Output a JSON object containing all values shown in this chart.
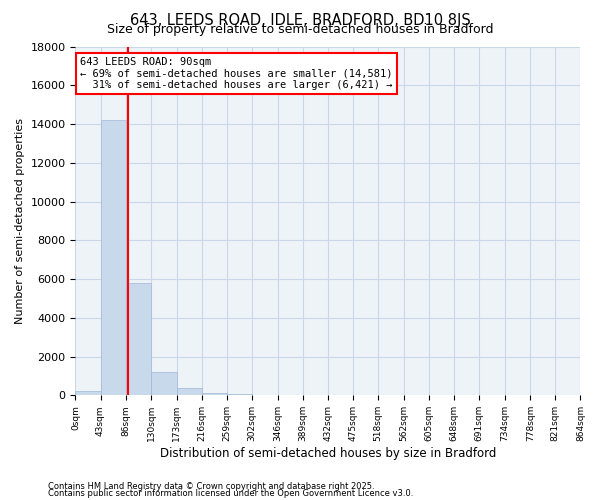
{
  "title": "643, LEEDS ROAD, IDLE, BRADFORD, BD10 8JS",
  "subtitle": "Size of property relative to semi-detached houses in Bradford",
  "xlabel": "Distribution of semi-detached houses by size in Bradford",
  "ylabel": "Number of semi-detached properties",
  "bar_color": "#c9d9ec",
  "bar_edge_color": "#a0b8d8",
  "grid_color": "#c8d8e8",
  "background_color": "#eef3f8",
  "property_line_x": 90,
  "property_line_color": "red",
  "annotation_line1": "643 LEEDS ROAD: 90sqm",
  "annotation_line2": "← 69% of semi-detached houses are smaller (14,581)",
  "annotation_line3": "  31% of semi-detached houses are larger (6,421) →",
  "bin_edges": [
    0,
    43,
    86,
    130,
    173,
    216,
    259,
    302,
    346,
    389,
    432,
    475,
    518,
    562,
    605,
    648,
    691,
    734,
    778,
    821,
    864
  ],
  "bin_labels": [
    "0sqm",
    "43sqm",
    "86sqm",
    "130sqm",
    "173sqm",
    "216sqm",
    "259sqm",
    "302sqm",
    "346sqm",
    "389sqm",
    "432sqm",
    "475sqm",
    "518sqm",
    "562sqm",
    "605sqm",
    "648sqm",
    "691sqm",
    "734sqm",
    "778sqm",
    "821sqm",
    "864sqm"
  ],
  "bar_heights": [
    200,
    14200,
    5800,
    1200,
    400,
    130,
    60,
    30,
    15,
    8,
    5,
    3,
    2,
    1,
    1,
    0,
    0,
    0,
    0,
    0
  ],
  "ylim": [
    0,
    18000
  ],
  "yticks": [
    0,
    2000,
    4000,
    6000,
    8000,
    10000,
    12000,
    14000,
    16000,
    18000
  ],
  "footer1": "Contains HM Land Registry data © Crown copyright and database right 2025.",
  "footer2": "Contains public sector information licensed under the Open Government Licence v3.0."
}
